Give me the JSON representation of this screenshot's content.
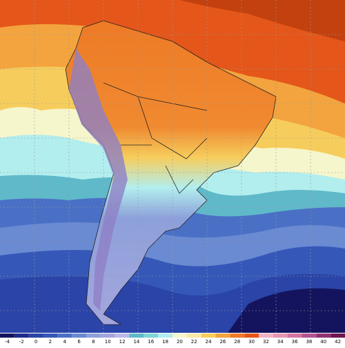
{
  "colorbar": {
    "ticks": [
      -4,
      -2,
      0,
      2,
      4,
      6,
      8,
      10,
      12,
      14,
      16,
      18,
      20,
      22,
      24,
      26,
      28,
      30,
      32,
      34,
      36,
      38,
      40,
      42
    ],
    "colors": [
      "#14145e",
      "#1e2a8c",
      "#2a44a8",
      "#3558b8",
      "#4a70c6",
      "#6a8ad2",
      "#8da0da",
      "#a5a6de",
      "#bcb9e8",
      "#5fb9c9",
      "#7fd6d6",
      "#b2eeee",
      "#f6f6cc",
      "#f8e9a8",
      "#f6cd5c",
      "#f3a43e",
      "#ee7a26",
      "#e4561a",
      "#f2b3c2",
      "#e894b2",
      "#d474a2",
      "#b45492",
      "#923272",
      "#701452"
    ]
  }
}
